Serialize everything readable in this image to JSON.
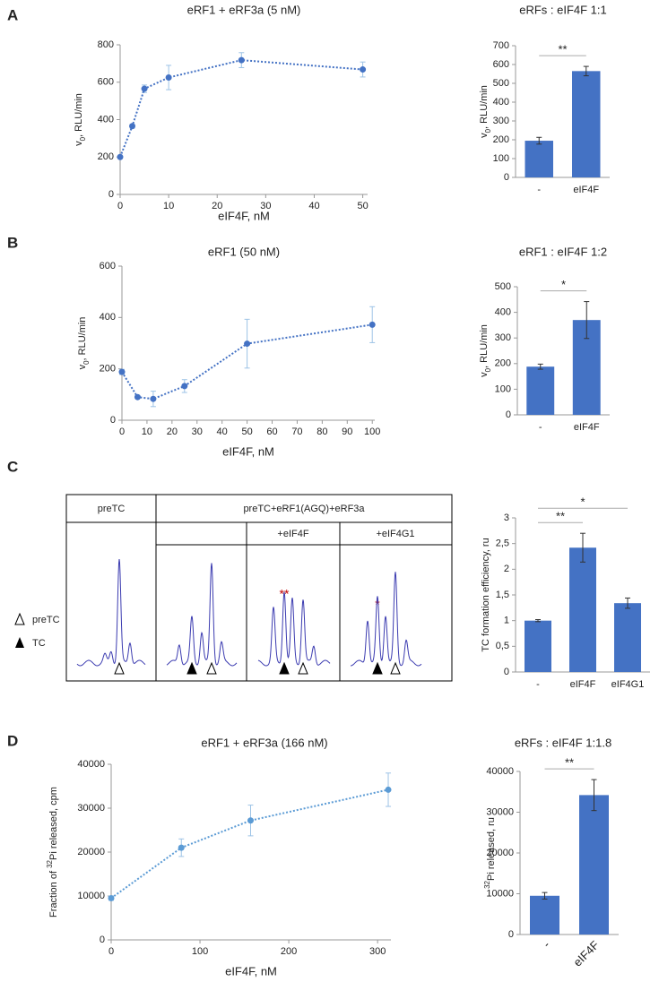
{
  "chart_data": [
    {
      "type": "line",
      "panel": "A",
      "title": "eRF1 + eRF3a (5 nM)",
      "xlabel": "eIF4F, nM",
      "ylabel": [
        {
          "text": "v"
        },
        {
          "text": "0",
          "sub": true
        },
        {
          "text": ", RLU/min"
        }
      ],
      "x": [
        0,
        2.5,
        5,
        10,
        25,
        50
      ],
      "series": [
        {
          "color": "#4472c4",
          "values": [
            200,
            365,
            565,
            625,
            718,
            668
          ],
          "errors": [
            5,
            10,
            20,
            65,
            40,
            40
          ]
        }
      ],
      "xlim": [
        0,
        51
      ],
      "xticks": [
        0,
        10,
        20,
        30,
        40,
        50
      ],
      "ylim": [
        0,
        800
      ],
      "yticks": [
        0,
        200,
        400,
        600,
        800
      ]
    },
    {
      "type": "bar",
      "title": "eRFs : eIF4F 1:1",
      "ylabel": [
        {
          "text": "v"
        },
        {
          "text": "0",
          "sub": true
        },
        {
          "text": ", RLU/min"
        }
      ],
      "categories": [
        "-",
        "eIF4F"
      ],
      "color": "#4472c4",
      "values": [
        195,
        565
      ],
      "errors": [
        18,
        25
      ],
      "ylim": [
        0,
        700
      ],
      "yticks": [
        0,
        100,
        200,
        300,
        400,
        500,
        600,
        700
      ],
      "annotations": [
        "**"
      ]
    },
    {
      "type": "line",
      "panel": "B",
      "title": "eRF1 (50 nM)",
      "xlabel": "eIF4F, nM",
      "ylabel": [
        {
          "text": "v"
        },
        {
          "text": "0",
          "sub": true
        },
        {
          "text": ", RLU/min"
        }
      ],
      "x": [
        0,
        6.25,
        12.5,
        25,
        50,
        100
      ],
      "series": [
        {
          "color": "#4472c4",
          "values": [
            188,
            90,
            83,
            133,
            298,
            372
          ],
          "errors": [
            10,
            5,
            30,
            25,
            95,
            70
          ]
        }
      ],
      "xlim": [
        0,
        101
      ],
      "xticks": [
        0,
        10,
        20,
        30,
        40,
        50,
        60,
        70,
        80,
        90,
        100
      ],
      "ylim": [
        0,
        600
      ],
      "yticks": [
        0,
        200,
        400,
        600
      ]
    },
    {
      "type": "bar",
      "title": "eRF1 : eIF4F 1:2",
      "ylabel": [
        {
          "text": "v"
        },
        {
          "text": "0",
          "sub": true
        },
        {
          "text": ", RLU/min"
        }
      ],
      "categories": [
        "-",
        "eIF4F"
      ],
      "color": "#4472c4",
      "values": [
        188,
        370
      ],
      "errors": [
        10,
        72
      ],
      "ylim": [
        0,
        500
      ],
      "yticks": [
        0,
        100,
        200,
        300,
        400,
        500
      ],
      "annotations": [
        "*"
      ]
    },
    {
      "type": "bar",
      "panel": "C",
      "ylabel": [
        {
          "text": "TC formation efficiency, ru"
        }
      ],
      "categories": [
        "-",
        "eIF4F",
        "eIF4G1"
      ],
      "color": "#4472c4",
      "values": [
        1.0,
        2.42,
        1.34
      ],
      "errors": [
        0.02,
        0.28,
        0.1
      ],
      "ylim": [
        0,
        3
      ],
      "yticks": [
        0,
        {
          "value": 0.5,
          "label": "0,5"
        },
        1,
        {
          "value": 1.5,
          "label": "1,5"
        },
        2,
        {
          "value": 2.5,
          "label": "2,5"
        },
        3
      ],
      "annotations": [
        "**",
        "*"
      ]
    },
    {
      "type": "line",
      "panel": "D",
      "title": "eRF1 + eRF3a (166 nM)",
      "xlabel": "eIF4F, nM",
      "ylabel": [
        {
          "text": "Fraction of  "
        },
        {
          "text": "32",
          "sup": true
        },
        {
          "text": "Pi released, cpm"
        }
      ],
      "x": [
        0,
        79,
        157,
        312
      ],
      "series": [
        {
          "color": "#5b9bd5",
          "values": [
            9500,
            21000,
            27200,
            34200
          ],
          "errors": [
            500,
            2000,
            3500,
            3800
          ]
        }
      ],
      "xlim": [
        0,
        315
      ],
      "xticks": [
        0,
        100,
        200,
        300
      ],
      "ylim": [
        0,
        40000
      ],
      "yticks": [
        0,
        10000,
        20000,
        30000,
        40000
      ]
    },
    {
      "type": "bar",
      "title": "eRFs : eIF4F 1:1.8",
      "ylabel": [
        {
          "text": "32",
          "sup": true
        },
        {
          "text": "Pi released, ru"
        }
      ],
      "categories": [
        "-",
        "eIF4F"
      ],
      "color": "#4472c4",
      "values": [
        9500,
        34200
      ],
      "errors": [
        800,
        3800
      ],
      "ylim": [
        0,
        40000
      ],
      "yticks": [
        0,
        10000,
        20000,
        30000,
        40000
      ],
      "annotations": [
        "**"
      ],
      "xtick_rotation": -45
    }
  ],
  "trace_figure": {
    "headers": [
      "preTC",
      "preTC+eRF1(AGQ)+eRF3a",
      "+eIF4F",
      "+eIF4G1"
    ],
    "legend": [
      "preTC",
      "TC"
    ],
    "annotations": [
      "**",
      "*"
    ]
  }
}
